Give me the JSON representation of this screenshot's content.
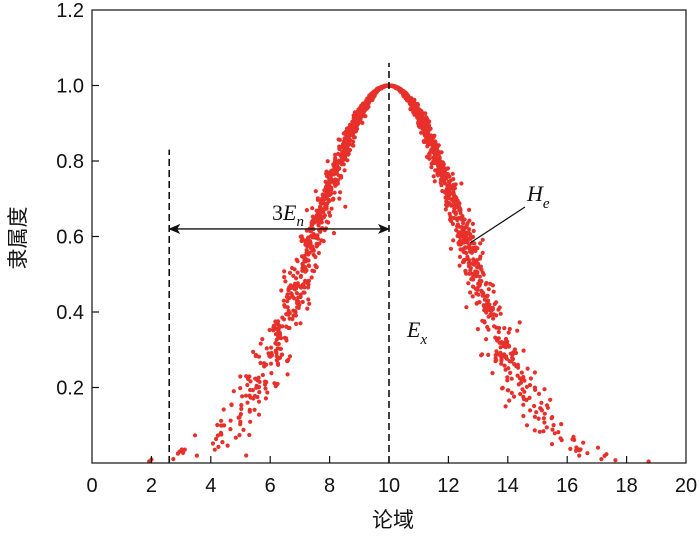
{
  "chart_data": {
    "type": "scatter",
    "title": "",
    "xlabel": "论域",
    "ylabel": "隶属度",
    "xlim": [
      0,
      20
    ],
    "ylim": [
      0,
      1.2
    ],
    "x_ticks": [
      0,
      2,
      4,
      6,
      8,
      10,
      12,
      14,
      16,
      18,
      20
    ],
    "y_ticks": [
      0.2,
      0.4,
      0.6,
      0.8,
      1.0,
      1.2
    ],
    "x_tick_labels": [
      "0",
      "2",
      "4",
      "6",
      "8",
      "10",
      "12",
      "14",
      "16",
      "18",
      "20"
    ],
    "y_tick_labels": [
      "0.2",
      "0.4",
      "0.6",
      "0.8",
      "1.0",
      "1.2"
    ],
    "grid": false,
    "point_color": "#e8302a",
    "cloud": {
      "Ex": 10,
      "En": 2.5,
      "He": 0.2,
      "drops": 2000
    },
    "reference_lines": [
      {
        "x": 10,
        "y_from": 0,
        "y_to": 1.06,
        "style": "dashed"
      },
      {
        "x": 2.6,
        "y_from": 0,
        "y_to": 0.83,
        "style": "dashed"
      }
    ],
    "span_arrow": {
      "x_from": 2.6,
      "x_to": 10,
      "y": 0.62
    },
    "annotations": {
      "span": {
        "prefix": "3",
        "main": "E",
        "sub": "n"
      },
      "ex": {
        "main": "E",
        "sub": "x"
      },
      "he": {
        "main": "H",
        "sub": "e"
      }
    }
  }
}
